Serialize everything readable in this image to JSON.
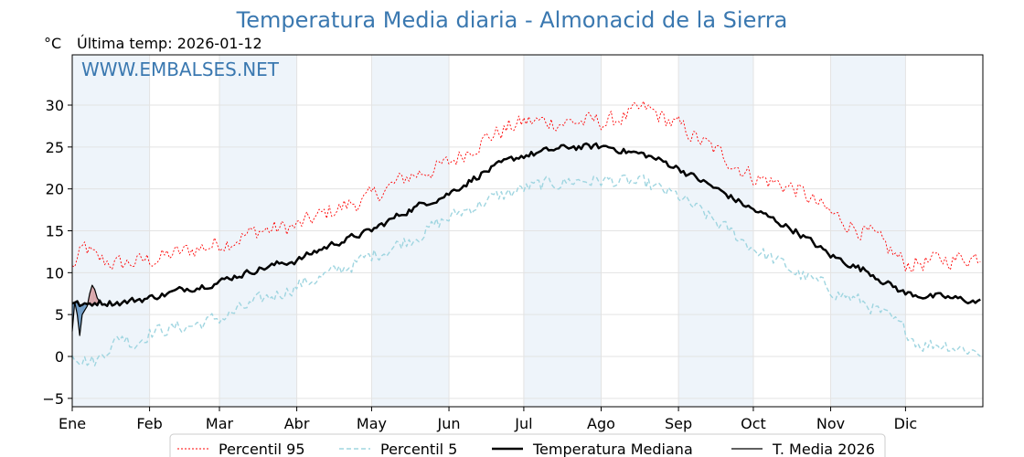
{
  "header": {
    "title": "Temperatura Media diaria - Almonacid de la Sierra",
    "unit": "°C",
    "last_temp_label": "Última temp:",
    "last_temp_date": "2026-01-12",
    "watermark": "WWW.EMBALSES.NET"
  },
  "chart_data": {
    "type": "line",
    "title": "Temperatura Media diaria - Almonacid de la Sierra",
    "ylabel": "°C",
    "ylim": [
      -6,
      36
    ],
    "yticks": [
      -5,
      0,
      5,
      10,
      15,
      20,
      25,
      30
    ],
    "ytick_labels": [
      "−5",
      "0",
      "5",
      "10",
      "15",
      "20",
      "25",
      "30"
    ],
    "grid": true,
    "legend_position": "bottom",
    "month_labels": [
      "Ene",
      "Feb",
      "Mar",
      "Abr",
      "May",
      "Jun",
      "Jul",
      "Ago",
      "Sep",
      "Oct",
      "Nov",
      "Dic"
    ],
    "month_start_days": [
      0,
      31,
      59,
      90,
      120,
      151,
      181,
      212,
      243,
      273,
      304,
      334
    ],
    "days_in_year": 365,
    "series": [
      {
        "name": "Percentil 95",
        "color": "#ff0000",
        "style": "dotted",
        "x": [
          0,
          5,
          10,
          20,
          31,
          45,
          59,
          75,
          90,
          105,
          120,
          135,
          151,
          165,
          181,
          200,
          215,
          230,
          243,
          258,
          273,
          290,
          304,
          320,
          334,
          350,
          364
        ],
        "values": [
          10.5,
          13.0,
          11.5,
          11.0,
          11.5,
          12.5,
          13.5,
          15.0,
          15.5,
          17.5,
          19.0,
          21.5,
          23.0,
          26.0,
          28.0,
          28.0,
          28.0,
          29.5,
          27.5,
          24.5,
          21.5,
          20.0,
          17.0,
          14.5,
          11.0,
          11.5,
          12.0
        ]
      },
      {
        "name": "Percentil 5",
        "color": "#9fd5e0",
        "style": "dashed",
        "x": [
          0,
          3,
          7,
          10,
          14,
          20,
          25,
          31,
          45,
          59,
          75,
          90,
          105,
          120,
          135,
          151,
          165,
          181,
          200,
          215,
          230,
          243,
          258,
          273,
          290,
          304,
          320,
          334,
          340,
          350,
          364
        ],
        "values": [
          0.5,
          0.0,
          -0.5,
          -0.5,
          1.0,
          2.5,
          1.5,
          3.0,
          3.5,
          4.5,
          6.5,
          8.5,
          10.0,
          12.0,
          14.0,
          16.5,
          18.5,
          20.0,
          21.0,
          21.0,
          20.5,
          19.0,
          16.0,
          13.0,
          10.0,
          8.0,
          6.0,
          3.0,
          1.5,
          1.5,
          0.5
        ]
      },
      {
        "name": "Temperatura Mediana",
        "color": "#000000",
        "style": "solid-thick",
        "x": [
          0,
          5,
          10,
          20,
          31,
          45,
          59,
          75,
          90,
          105,
          120,
          135,
          151,
          165,
          181,
          200,
          215,
          230,
          243,
          258,
          273,
          290,
          304,
          320,
          334,
          350,
          364
        ],
        "values": [
          6.5,
          6.0,
          6.5,
          6.5,
          7.0,
          8.0,
          9.0,
          10.5,
          11.5,
          13.5,
          15.0,
          17.5,
          19.5,
          22.0,
          24.0,
          25.0,
          25.0,
          24.0,
          22.5,
          20.0,
          17.5,
          15.0,
          12.0,
          10.0,
          7.5,
          7.0,
          6.5
        ]
      },
      {
        "name": "T. Media 2026",
        "color": "#000000",
        "style": "solid-thin",
        "x": [
          0,
          1,
          2,
          3,
          4,
          5,
          6,
          7,
          8,
          9,
          10,
          11
        ],
        "values": [
          3.0,
          6.5,
          5.0,
          2.5,
          5.0,
          5.5,
          6.0,
          7.5,
          8.5,
          8.0,
          7.0,
          6.5
        ]
      }
    ]
  },
  "legend": {
    "items": [
      "Percentil 95",
      "Percentil 5",
      "Temperatura Mediana",
      "T. Media 2026"
    ]
  },
  "colors": {
    "title": "#3a78b0",
    "band": "#eef4fa",
    "fill_above": "#d9a6ab",
    "fill_below": "#6f9cc6"
  }
}
